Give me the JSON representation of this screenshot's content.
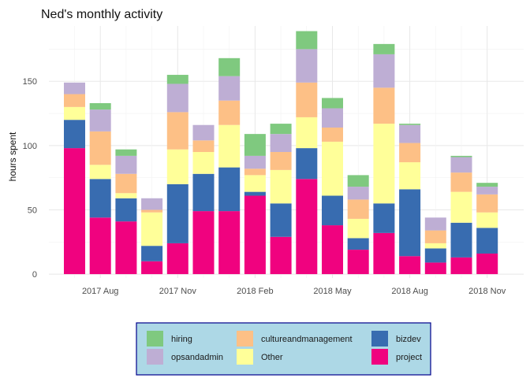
{
  "chart_data": {
    "type": "bar",
    "stacked": true,
    "title": "Ned's monthly activity",
    "xlabel": "",
    "ylabel": "hours spent",
    "ylim": [
      -3,
      193
    ],
    "yticks": [
      0,
      50,
      100,
      150
    ],
    "xticks": [
      {
        "label": "2017 Aug",
        "month_index": 1
      },
      {
        "label": "2017 Nov",
        "month_index": 4
      },
      {
        "label": "2018 Feb",
        "month_index": 7
      },
      {
        "label": "2018 May",
        "month_index": 10
      },
      {
        "label": "2018 Aug",
        "month_index": 13
      },
      {
        "label": "2018 Nov",
        "month_index": 16
      }
    ],
    "categories": [
      "2017-07",
      "2017-08",
      "2017-09",
      "2017-10",
      "2017-11",
      "2017-12",
      "2018-01",
      "2018-02",
      "2018-03",
      "2018-04",
      "2018-05",
      "2018-06",
      "2018-07",
      "2018-08",
      "2018-09",
      "2018-10",
      "2018-11"
    ],
    "grid": true,
    "legend_position": "bottom",
    "series": [
      {
        "name": "project",
        "color": "#F0027F",
        "values": [
          98,
          44,
          41,
          10,
          24,
          49,
          49,
          61,
          29,
          74,
          38,
          19,
          32,
          14,
          9,
          13,
          16
        ]
      },
      {
        "name": "bizdev",
        "color": "#386CB0",
        "values": [
          22,
          30,
          18,
          12,
          46,
          29,
          34,
          3,
          26,
          24,
          23,
          9,
          23,
          52,
          11,
          27,
          20
        ]
      },
      {
        "name": "Other",
        "color": "#FFFF99",
        "values": [
          10,
          11,
          4,
          26,
          27,
          17,
          33,
          13,
          26,
          24,
          42,
          15,
          62,
          21,
          4,
          24,
          12
        ]
      },
      {
        "name": "cultureandmanagement",
        "color": "#FDC086",
        "values": [
          10,
          26,
          15,
          2,
          29,
          9,
          19,
          5,
          14,
          27,
          11,
          15,
          28,
          15,
          10,
          15,
          14
        ]
      },
      {
        "name": "opsandadmin",
        "color": "#BEAED4",
        "values": [
          9,
          17,
          14,
          9,
          22,
          12,
          19,
          10,
          14,
          26,
          15,
          10,
          26,
          14,
          10,
          12,
          6
        ]
      },
      {
        "name": "hiring",
        "color": "#7FC97F",
        "values": [
          0,
          5,
          5,
          0,
          7,
          0,
          14,
          17,
          8,
          14,
          8,
          9,
          8,
          1,
          0,
          1,
          3
        ]
      }
    ],
    "legend": {
      "background": "#ADD8E6",
      "border": "#00008B",
      "columns": [
        [
          "hiring",
          "opsandadmin"
        ],
        [
          "cultureandmanagement",
          "Other"
        ],
        [
          "bizdev",
          "project"
        ]
      ]
    }
  }
}
